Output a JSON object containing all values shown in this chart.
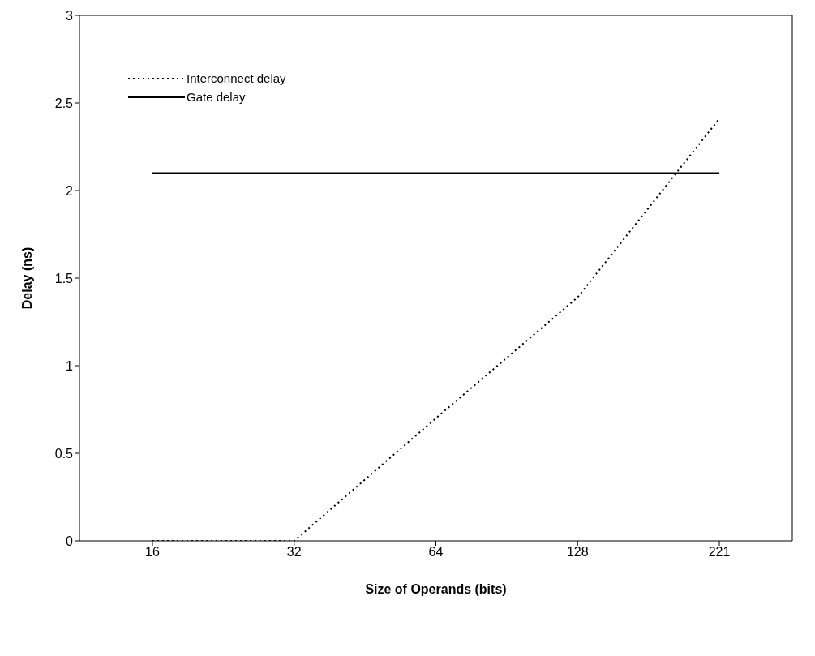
{
  "chart_data": {
    "type": "line",
    "xlabel": "Size of Operands (bits)",
    "ylabel": "Delay (ns)",
    "categories": [
      "16",
      "32",
      "64",
      "128",
      "221"
    ],
    "series": [
      {
        "name": "Interconnect delay",
        "color": "#000000",
        "line_style": "dotted",
        "values": [
          0,
          0,
          0.7,
          1.39,
          2.41
        ]
      },
      {
        "name": "Gate delay",
        "color": "#000000",
        "line_style": "solid",
        "values": [
          2.1,
          2.1,
          2.1,
          2.1,
          2.1
        ]
      }
    ],
    "ylim": [
      0,
      3
    ],
    "yticks": [
      0,
      0.5,
      1,
      1.5,
      2,
      2.5,
      3
    ],
    "legend": "top left",
    "marker": "none"
  }
}
